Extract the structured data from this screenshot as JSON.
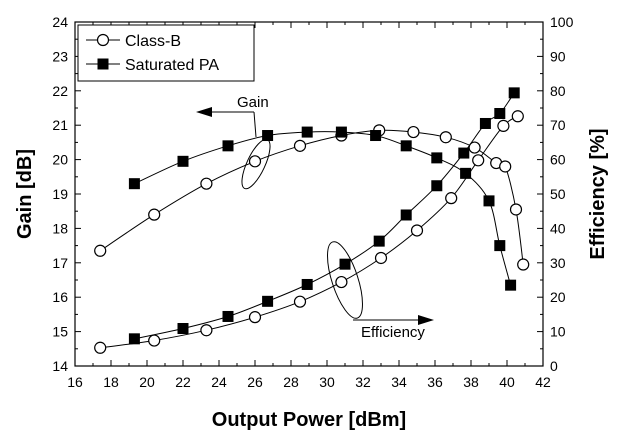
{
  "chart_data": {
    "type": "line",
    "xlabel": "Output Power [dBm]",
    "ylabel_left": "Gain [dB]",
    "ylabel_right": "Efficiency [%]",
    "xlim": [
      16,
      42
    ],
    "ylim_left": [
      14,
      24
    ],
    "ylim_right": [
      0,
      100
    ],
    "x_ticks": [
      16,
      18,
      20,
      22,
      24,
      26,
      28,
      30,
      32,
      34,
      36,
      38,
      40,
      42
    ],
    "y_left_ticks": [
      14,
      15,
      16,
      17,
      18,
      19,
      20,
      21,
      22,
      23,
      24
    ],
    "y_right_ticks": [
      0,
      10,
      20,
      30,
      40,
      50,
      60,
      70,
      80,
      90,
      100
    ],
    "grid": false,
    "legend_position": "top-left",
    "legend": [
      {
        "label": "Class-B",
        "marker": "open-circle"
      },
      {
        "label": "Saturated PA",
        "marker": "filled-square"
      }
    ],
    "series": [
      {
        "name": "Class-B",
        "quantity": "Gain",
        "axis": "left",
        "marker": "open-circle",
        "x": [
          17.4,
          20.4,
          23.3,
          26.0,
          28.5,
          30.8,
          32.9,
          34.8,
          36.6,
          38.2,
          39.4,
          39.9,
          40.5,
          40.9
        ],
        "y": [
          17.35,
          18.4,
          19.3,
          19.95,
          20.4,
          20.7,
          20.85,
          20.8,
          20.65,
          20.35,
          19.9,
          19.8,
          18.55,
          16.95
        ]
      },
      {
        "name": "Saturated PA",
        "quantity": "Gain",
        "axis": "left",
        "marker": "filled-square",
        "x": [
          19.3,
          22.0,
          24.5,
          26.7,
          28.9,
          30.8,
          32.7,
          34.4,
          36.1,
          37.7,
          39.0,
          39.6,
          40.2
        ],
        "y": [
          19.3,
          19.95,
          20.4,
          20.7,
          20.8,
          20.8,
          20.7,
          20.4,
          20.05,
          19.6,
          18.8,
          17.5,
          16.35
        ]
      },
      {
        "name": "Class-B",
        "quantity": "Efficiency",
        "axis": "right",
        "marker": "open-circle",
        "x": [
          17.4,
          20.4,
          23.3,
          26.0,
          28.5,
          30.8,
          33.0,
          35.0,
          36.9,
          38.4,
          39.8,
          40.6
        ],
        "y": [
          5.3,
          7.4,
          10.4,
          14.2,
          18.7,
          24.4,
          31.4,
          39.4,
          48.8,
          59.8,
          69.8,
          72.6
        ]
      },
      {
        "name": "Saturated PA",
        "quantity": "Efficiency",
        "axis": "right",
        "marker": "filled-square",
        "x": [
          19.3,
          22.0,
          24.5,
          26.7,
          28.9,
          31.0,
          32.9,
          34.4,
          36.1,
          37.6,
          38.8,
          39.6,
          40.4
        ],
        "y": [
          7.9,
          10.9,
          14.4,
          18.8,
          23.7,
          29.6,
          36.3,
          43.9,
          52.4,
          61.9,
          70.5,
          73.4,
          79.4
        ]
      }
    ],
    "annotations": [
      {
        "text": "Gain",
        "arrow": "left"
      },
      {
        "text": "Efficiency",
        "arrow": "right"
      }
    ]
  }
}
